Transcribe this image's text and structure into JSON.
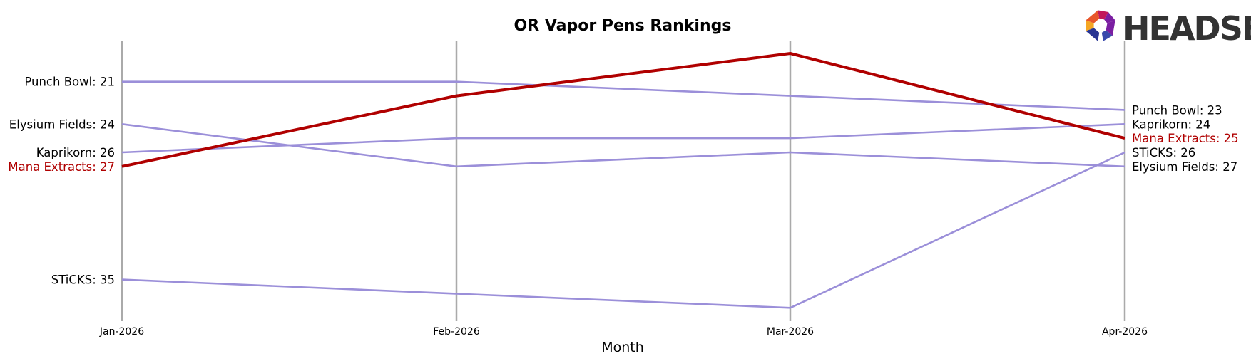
{
  "chart_data": {
    "type": "line",
    "title": "OR Vapor Pens Rankings",
    "xlabel": "Month",
    "ylabel": "",
    "categories": [
      "Jan-2026",
      "Feb-2026",
      "Mar-2026",
      "Apr-2026"
    ],
    "y_inverted": true,
    "ylim": [
      18,
      37
    ],
    "grid": "vertical",
    "highlight_color": "#b00000",
    "base_color": "#9b8fd9",
    "axis_color": "#aaaaaa",
    "series": [
      {
        "name": "Punch Bowl",
        "values": [
          21,
          21,
          22,
          23
        ],
        "highlight": false
      },
      {
        "name": "Elysium Fields",
        "values": [
          24,
          27,
          26,
          27
        ],
        "highlight": false
      },
      {
        "name": "Kaprikorn",
        "values": [
          26,
          25,
          25,
          24
        ],
        "highlight": false
      },
      {
        "name": "Mana Extracts",
        "values": [
          27,
          22,
          19,
          25
        ],
        "highlight": true
      },
      {
        "name": "STiCKS",
        "values": [
          35,
          36,
          37,
          26
        ],
        "highlight": false
      }
    ],
    "left_labels": [
      "Punch Bowl: 21",
      "Elysium Fields: 24",
      "Kaprikorn: 26",
      "Mana Extracts: 27",
      "STiCKS: 35"
    ],
    "right_labels": [
      "Punch Bowl: 23",
      "Kaprikorn: 24",
      "Mana Extracts: 25",
      "STiCKS: 26",
      "Elysium Fields: 27"
    ]
  },
  "logo": {
    "text": "HEADSET",
    "colors": [
      "#e8562a",
      "#f5a623",
      "#c2185b",
      "#7b1fa2",
      "#283593",
      "#3949ab"
    ]
  }
}
